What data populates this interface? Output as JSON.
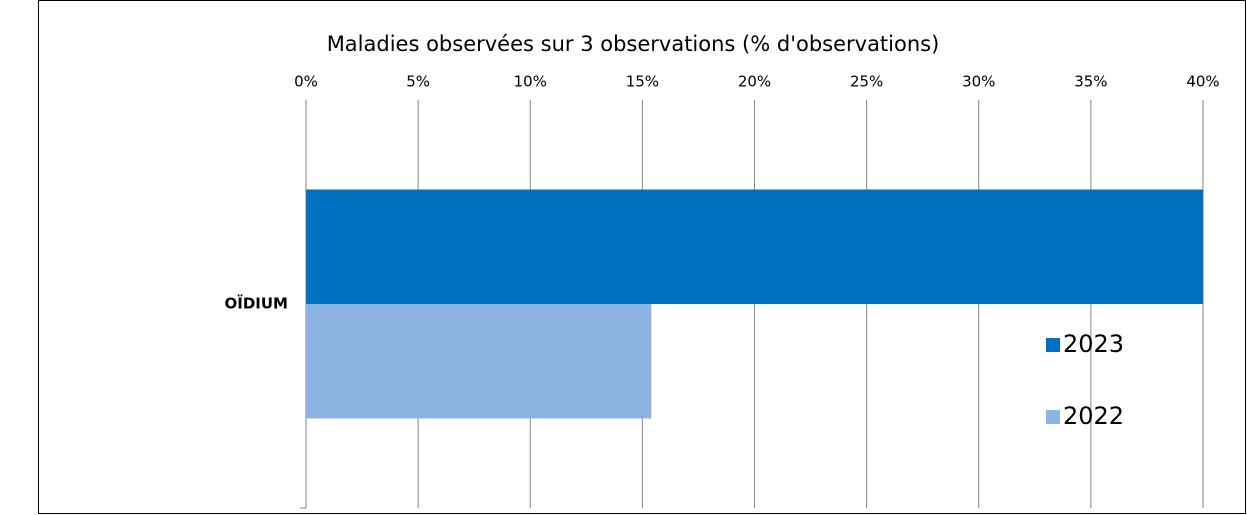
{
  "chart_data": {
    "type": "bar",
    "orientation": "horizontal",
    "title": "Maladies observées sur 3 observations (% d'observations)",
    "categories": [
      "OÏDIUM"
    ],
    "series": [
      {
        "name": "2023",
        "color": "#0070c0",
        "values": [
          40
        ]
      },
      {
        "name": "2022",
        "color": "#8eb4e3",
        "values": [
          15.4
        ]
      }
    ],
    "xlim": [
      0,
      40
    ],
    "xticks": [
      {
        "value": 0,
        "label": "0%"
      },
      {
        "value": 5,
        "label": "5%"
      },
      {
        "value": 10,
        "label": "10%"
      },
      {
        "value": 15,
        "label": "15%"
      },
      {
        "value": 20,
        "label": "20%"
      },
      {
        "value": 25,
        "label": "25%"
      },
      {
        "value": 30,
        "label": "30%"
      },
      {
        "value": 35,
        "label": "35%"
      },
      {
        "value": 40,
        "label": "40%"
      }
    ],
    "grid": true,
    "legend": "right"
  }
}
